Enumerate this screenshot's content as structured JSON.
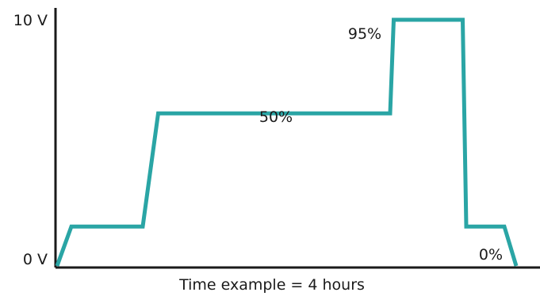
{
  "chart_data": {
    "type": "line",
    "title": "",
    "xlabel": "Time example = 4 hours",
    "ylabel": "",
    "ylim": [
      0,
      10
    ],
    "y_tick_labels": [
      {
        "value": 0,
        "label": "0 V"
      },
      {
        "value": 10,
        "label": "10 V"
      }
    ],
    "series": [
      {
        "color": "#2aa5a5",
        "x": [
          0,
          0.06,
          0.36,
          0.425,
          1.4,
          1.415,
          1.705,
          1.72,
          1.88,
          1.93
        ],
        "y": [
          0,
          1.6,
          1.6,
          6.2,
          6.2,
          10,
          10,
          1.6,
          1.6,
          0
        ]
      }
    ],
    "annotations": [
      {
        "text": "50%",
        "x": 0.95,
        "y": 6.2
      },
      {
        "text": "95%",
        "x": 1.38,
        "y": 10
      },
      {
        "text": "0%",
        "x": 1.83,
        "y": 1.6
      }
    ],
    "grid": false,
    "axes_color": "#1a1a1a"
  }
}
